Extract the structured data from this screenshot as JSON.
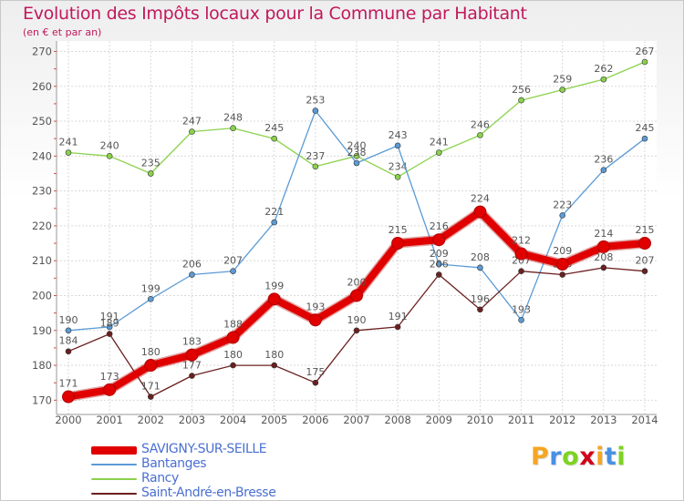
{
  "header": {
    "title": "Evolution des Impôts locaux pour la Commune par Habitant",
    "subtitle": "(en € et par an)"
  },
  "brand": {
    "letters": [
      "P",
      "r",
      "o",
      "x",
      "i",
      "t",
      "i"
    ],
    "colors": [
      "#f5a623",
      "#4a90e2",
      "#7ed321",
      "#d0021b",
      "#f5a623",
      "#4a90e2",
      "#7ed321"
    ]
  },
  "chart_data": {
    "type": "line",
    "title": "Evolution des Impôts locaux pour la Commune par Habitant",
    "subtitle": "(en € et par an)",
    "xlabel": "",
    "ylabel": "",
    "ylim": [
      168,
      273
    ],
    "yticks": [
      170,
      180,
      190,
      200,
      210,
      220,
      230,
      240,
      250,
      260,
      270
    ],
    "grid": true,
    "legend_position": "bottom-left",
    "categories": [
      "2000",
      "2001",
      "2002",
      "2003",
      "2004",
      "2005",
      "2006",
      "2007",
      "2008",
      "2009",
      "2010",
      "2011",
      "2012",
      "2013",
      "2014"
    ],
    "series": [
      {
        "name": "SAVIGNY-SUR-SEILLE",
        "color": "#e00000",
        "values": [
          171,
          173,
          180,
          183,
          188,
          199,
          193,
          200,
          215,
          216,
          224,
          212,
          209,
          214,
          215
        ],
        "labels": [
          "171",
          "173",
          "180",
          "183",
          "188",
          "199",
          "193",
          "200",
          "215",
          "216",
          "224",
          "212",
          "209",
          "214",
          "215"
        ]
      },
      {
        "name": "Bantanges",
        "color": "#5b9bd5",
        "values": [
          190,
          191,
          199,
          206,
          207,
          221,
          253,
          238,
          243,
          209,
          208,
          193,
          223,
          236,
          245
        ],
        "labels": [
          "190",
          "191",
          "199",
          "206",
          "207",
          "221",
          "253",
          "238",
          "243",
          "209",
          "208",
          "193",
          "223",
          "236",
          "245"
        ]
      },
      {
        "name": "Rancy",
        "color": "#8bd24c",
        "values": [
          241,
          240,
          235,
          247,
          248,
          245,
          237,
          240,
          234,
          241,
          246,
          256,
          259,
          262,
          267
        ],
        "labels": [
          "241",
          "240",
          "235",
          "247",
          "248",
          "245",
          "237",
          "240",
          "234",
          "241",
          "246",
          "256",
          "259",
          "262",
          "267"
        ]
      },
      {
        "name": "Saint-André-en-Bresse",
        "color": "#6b1f1f",
        "values": [
          184,
          189,
          171,
          177,
          180,
          180,
          175,
          190,
          191,
          206,
          196,
          207,
          206,
          208,
          207
        ],
        "labels": [
          "184",
          "189",
          "171",
          "177",
          "180",
          "180",
          "175",
          "190",
          "191",
          "206",
          "196",
          "207",
          "206",
          "208",
          "207"
        ]
      }
    ]
  }
}
